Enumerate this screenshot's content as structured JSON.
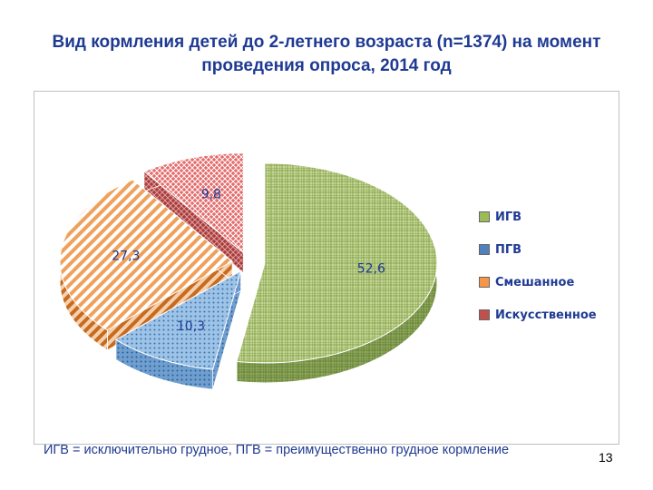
{
  "slide": {
    "title": "Вид кормления детей до 2-летнего возраста (n=1374) на момент проведения опроса, 2014 год",
    "footnote": "ИГВ = исключительно грудное, ПГВ = преимущественно грудное кормление",
    "page_number": "13"
  },
  "chart_data": {
    "type": "pie",
    "title": "",
    "legend_position": "right",
    "categories": [
      "ИГВ",
      "ПГВ",
      "Смешанное",
      "Искусственное"
    ],
    "values": [
      52.6,
      10.3,
      27.3,
      9.8
    ],
    "data_labels": [
      "52,6",
      "10,3",
      "27,3",
      "9,8"
    ],
    "colors": [
      "#9bbb59",
      "#4f81bd",
      "#f79646",
      "#c0504d"
    ],
    "style": "3d-exploded"
  }
}
